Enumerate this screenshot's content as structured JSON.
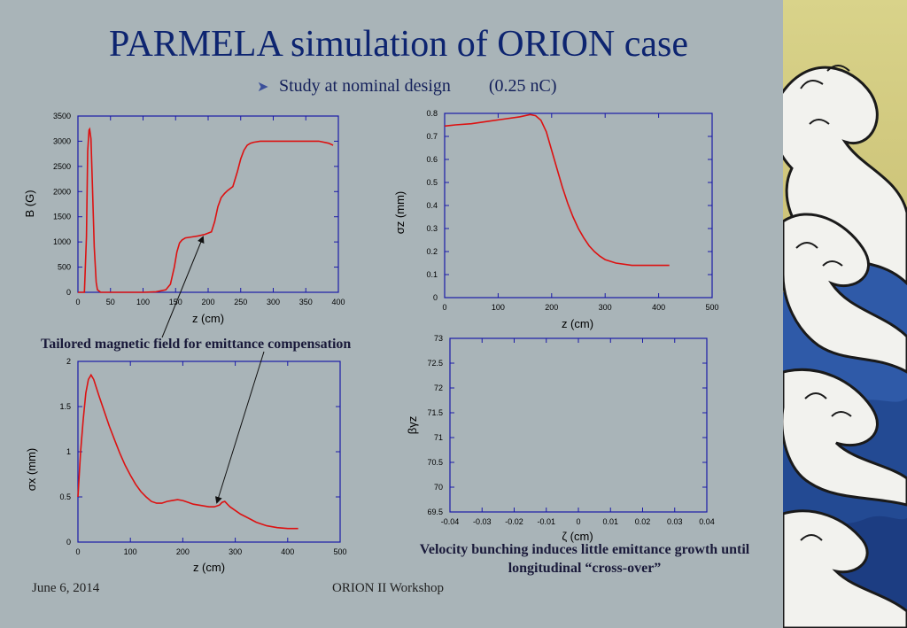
{
  "slide": {
    "title": "PARMELA simulation of ORION case",
    "subtitle_text": "Study at nominal design",
    "subtitle_charge": "(0.25 nC)",
    "caption_left": "Tailored magnetic field for emittance compensation",
    "caption_right": "Velocity bunching induces little emittance growth until longitudinal “cross-over”",
    "footer_date": "June 6, 2014",
    "footer_event": "ORION II Workshop",
    "accent_color": "#0d2470",
    "line_color": "#dd1111"
  },
  "chart_data": [
    {
      "type": "line",
      "xlabel": "z (cm)",
      "ylabel": "B (G)",
      "xlim": [
        0,
        400
      ],
      "ylim": [
        0,
        3500
      ],
      "xticks": [
        "0",
        "50",
        "100",
        "150",
        "200",
        "250",
        "300",
        "350",
        "400"
      ],
      "yticks": [
        "0",
        "500",
        "1000",
        "1500",
        "2000",
        "2500",
        "3000",
        "3500"
      ],
      "series": [
        {
          "x": [
            0,
            10,
            13,
            15,
            17,
            18,
            20,
            22,
            25,
            28,
            30,
            35,
            100,
            120,
            135,
            142,
            148,
            152,
            156,
            160,
            165,
            175,
            185,
            195,
            205,
            210,
            215,
            220,
            225,
            230,
            238,
            245,
            250,
            255,
            260,
            265,
            270,
            280,
            300,
            340,
            370,
            385,
            392
          ],
          "y": [
            0,
            0,
            1100,
            2800,
            3220,
            3240,
            3050,
            2200,
            900,
            200,
            50,
            0,
            0,
            10,
            50,
            160,
            500,
            800,
            980,
            1040,
            1080,
            1100,
            1120,
            1150,
            1200,
            1400,
            1700,
            1880,
            1960,
            2020,
            2100,
            2400,
            2650,
            2820,
            2920,
            2960,
            2980,
            3000,
            3000,
            3000,
            3000,
            2960,
            2920
          ]
        }
      ]
    },
    {
      "type": "line",
      "xlabel": "z (cm)",
      "ylabel": "σz (mm)",
      "xlim": [
        0,
        500
      ],
      "ylim": [
        0,
        0.8
      ],
      "xticks": [
        "0",
        "100",
        "200",
        "300",
        "400",
        "500"
      ],
      "yticks": [
        "0",
        "0.1",
        "0.2",
        "0.3",
        "0.4",
        "0.5",
        "0.6",
        "0.7",
        "0.8"
      ],
      "series": [
        {
          "x": [
            0,
            20,
            50,
            80,
            110,
            140,
            160,
            170,
            180,
            190,
            200,
            210,
            220,
            230,
            240,
            250,
            260,
            270,
            280,
            290,
            300,
            320,
            350,
            380,
            420
          ],
          "y": [
            0.745,
            0.75,
            0.755,
            0.765,
            0.775,
            0.785,
            0.795,
            0.79,
            0.77,
            0.72,
            0.64,
            0.56,
            0.48,
            0.41,
            0.35,
            0.3,
            0.26,
            0.225,
            0.2,
            0.18,
            0.165,
            0.15,
            0.14,
            0.14,
            0.14
          ]
        }
      ]
    },
    {
      "type": "line",
      "xlabel": "z (cm)",
      "ylabel": "σx (mm)",
      "xlim": [
        0,
        500
      ],
      "ylim": [
        0,
        2
      ],
      "xticks": [
        "0",
        "100",
        "200",
        "300",
        "400",
        "500"
      ],
      "yticks": [
        "0",
        "0.5",
        "1",
        "1.5",
        "2"
      ],
      "series": [
        {
          "x": [
            0,
            5,
            10,
            15,
            20,
            25,
            30,
            40,
            50,
            60,
            70,
            80,
            90,
            100,
            110,
            120,
            130,
            140,
            150,
            160,
            170,
            180,
            190,
            200,
            210,
            220,
            230,
            240,
            250,
            260,
            270,
            275,
            280,
            285,
            290,
            300,
            310,
            320,
            330,
            340,
            350,
            360,
            380,
            400,
            420
          ],
          "y": [
            0.5,
            1.0,
            1.35,
            1.65,
            1.8,
            1.85,
            1.8,
            1.62,
            1.45,
            1.28,
            1.13,
            0.98,
            0.85,
            0.74,
            0.64,
            0.56,
            0.5,
            0.45,
            0.43,
            0.43,
            0.45,
            0.46,
            0.47,
            0.46,
            0.44,
            0.42,
            0.41,
            0.4,
            0.39,
            0.39,
            0.41,
            0.44,
            0.45,
            0.42,
            0.39,
            0.35,
            0.31,
            0.28,
            0.25,
            0.22,
            0.2,
            0.18,
            0.16,
            0.15,
            0.15
          ]
        }
      ]
    },
    {
      "type": "scatter",
      "xlabel": "ζ (cm)",
      "ylabel": "βγz",
      "xlim": [
        -0.04,
        0.04
      ],
      "ylim": [
        69.5,
        73
      ],
      "xticks": [
        "-0.04",
        "-0.03",
        "-0.02",
        "-0.01",
        "0",
        "0.01",
        "0.02",
        "0.03",
        "0.04"
      ],
      "yticks": [
        "69.5",
        "70",
        "70.5",
        "71",
        "71.5",
        "72",
        "72.5",
        "73"
      ],
      "series": []
    }
  ]
}
